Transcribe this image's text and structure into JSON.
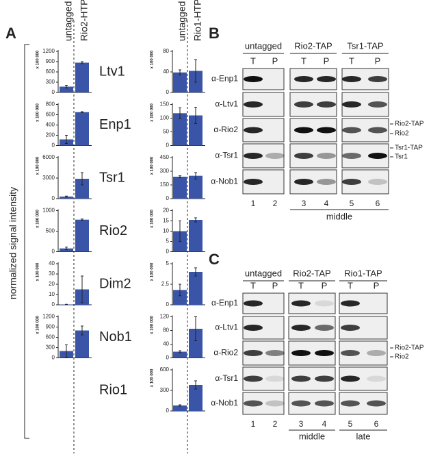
{
  "panel_a": {
    "label": "A",
    "y_label": "normalized signal intensity"
  },
  "chart_data": [
    {
      "type": "bar",
      "categories": [
        "untagged",
        "Rio2-HTP"
      ],
      "color": "#3a55a8",
      "panels": [
        {
          "title": "Ltv1",
          "y_unit": "x 100 000",
          "values": [
            170,
            870
          ],
          "errors": [
            40,
            30
          ],
          "ylim": [
            0,
            1200
          ],
          "yticks": [
            0,
            300,
            600,
            900,
            1200
          ]
        },
        {
          "title": "Enp1",
          "y_unit": "x 100 000",
          "values": [
            120,
            650
          ],
          "errors": [
            80,
            10
          ],
          "ylim": [
            0,
            800
          ],
          "yticks": [
            0,
            200,
            400,
            600,
            800
          ]
        },
        {
          "title": "Tsr1",
          "y_unit": "x 100 000",
          "values": [
            300,
            2900
          ],
          "errors": [
            80,
            900
          ],
          "ylim": [
            0,
            6000
          ],
          "yticks": [
            0,
            3000,
            6000
          ]
        },
        {
          "title": "Rio2",
          "y_unit": "x 100 000",
          "values": [
            80,
            780
          ],
          "errors": [
            30,
            15
          ],
          "ylim": [
            0,
            1000
          ],
          "yticks": [
            0,
            500,
            1000
          ]
        },
        {
          "title": "Dim2",
          "y_unit": "x 100 000",
          "values": [
            0.3,
            15
          ],
          "errors": [
            0.2,
            13
          ],
          "ylim": [
            0,
            40
          ],
          "yticks": [
            0,
            10,
            20,
            30,
            40
          ]
        },
        {
          "title": "Nob1",
          "y_unit": "x 100 000",
          "values": [
            200,
            800
          ],
          "errors": [
            180,
            130
          ],
          "ylim": [
            0,
            1200
          ],
          "yticks": [
            0,
            300,
            600,
            900,
            1200
          ]
        }
      ]
    },
    {
      "type": "bar",
      "categories": [
        "untagged",
        "Rio1-HTP"
      ],
      "color": "#3a55a8",
      "panels": [
        {
          "y_unit": "x 100 000",
          "values": [
            39,
            42
          ],
          "errors": [
            5,
            22
          ],
          "ylim": [
            0,
            80
          ],
          "yticks": [
            0,
            40,
            80
          ]
        },
        {
          "y_unit": "x 100 000",
          "values": [
            118,
            110
          ],
          "errors": [
            20,
            30
          ],
          "ylim": [
            0,
            150
          ],
          "yticks": [
            0,
            50,
            100,
            150
          ]
        },
        {
          "y_unit": "x 100 000",
          "values": [
            240,
            250
          ],
          "errors": [
            10,
            35
          ],
          "ylim": [
            0,
            450
          ],
          "yticks": [
            0,
            150,
            300,
            450
          ]
        },
        {
          "y_unit": "x 100 000",
          "values": [
            10,
            15.5
          ],
          "errors": [
            5,
            1
          ],
          "ylim": [
            0,
            20
          ],
          "yticks": [
            0,
            5,
            10,
            15,
            20
          ]
        },
        {
          "y_unit": "x 100 000",
          "values": [
            1.8,
            4
          ],
          "errors": [
            0.7,
            0.5
          ],
          "ylim": [
            0,
            5
          ],
          "yticks": [
            0,
            2.5,
            5
          ]
        },
        {
          "y_unit": "x 100 000",
          "values": [
            18,
            85
          ],
          "errors": [
            3,
            35
          ],
          "ylim": [
            0,
            120
          ],
          "yticks": [
            0,
            40,
            80,
            120
          ]
        },
        {
          "title": "Rio1",
          "y_unit": "x 100 000",
          "values": [
            80,
            380
          ],
          "errors": [
            10,
            60
          ],
          "ylim": [
            0,
            600
          ],
          "yticks": [
            0,
            300,
            600
          ]
        }
      ]
    }
  ],
  "blots": [
    {
      "label": "B",
      "strains": [
        "untagged",
        "Rio2-TAP",
        "Tsr1-TAP"
      ],
      "lanes": [
        "T",
        "P",
        "T",
        "P",
        "T",
        "P"
      ],
      "antibodies": [
        "α-Enp1",
        "α-Ltv1",
        "α-Rio2",
        "α-Tsr1",
        "α-Nob1"
      ],
      "markers": [
        "Rio2-TAP",
        "Rio2",
        "Tsr1-TAP",
        "Tsr1"
      ],
      "lane_numbers": [
        1,
        2,
        3,
        4,
        5,
        6
      ],
      "stages": [
        "middle"
      ]
    },
    {
      "label": "C",
      "strains": [
        "untagged",
        "Rio2-TAP",
        "Rio1-TAP"
      ],
      "lanes": [
        "T",
        "P",
        "T",
        "P",
        "T",
        "P"
      ],
      "antibodies": [
        "α-Enp1",
        "α-Ltv1",
        "α-Rio2",
        "α-Tsr1",
        "α-Nob1"
      ],
      "markers": [
        "Rio2-TAP",
        "Rio2"
      ],
      "lane_numbers": [
        1,
        2,
        3,
        4,
        5,
        6
      ],
      "stages": [
        "middle",
        "late"
      ]
    }
  ]
}
